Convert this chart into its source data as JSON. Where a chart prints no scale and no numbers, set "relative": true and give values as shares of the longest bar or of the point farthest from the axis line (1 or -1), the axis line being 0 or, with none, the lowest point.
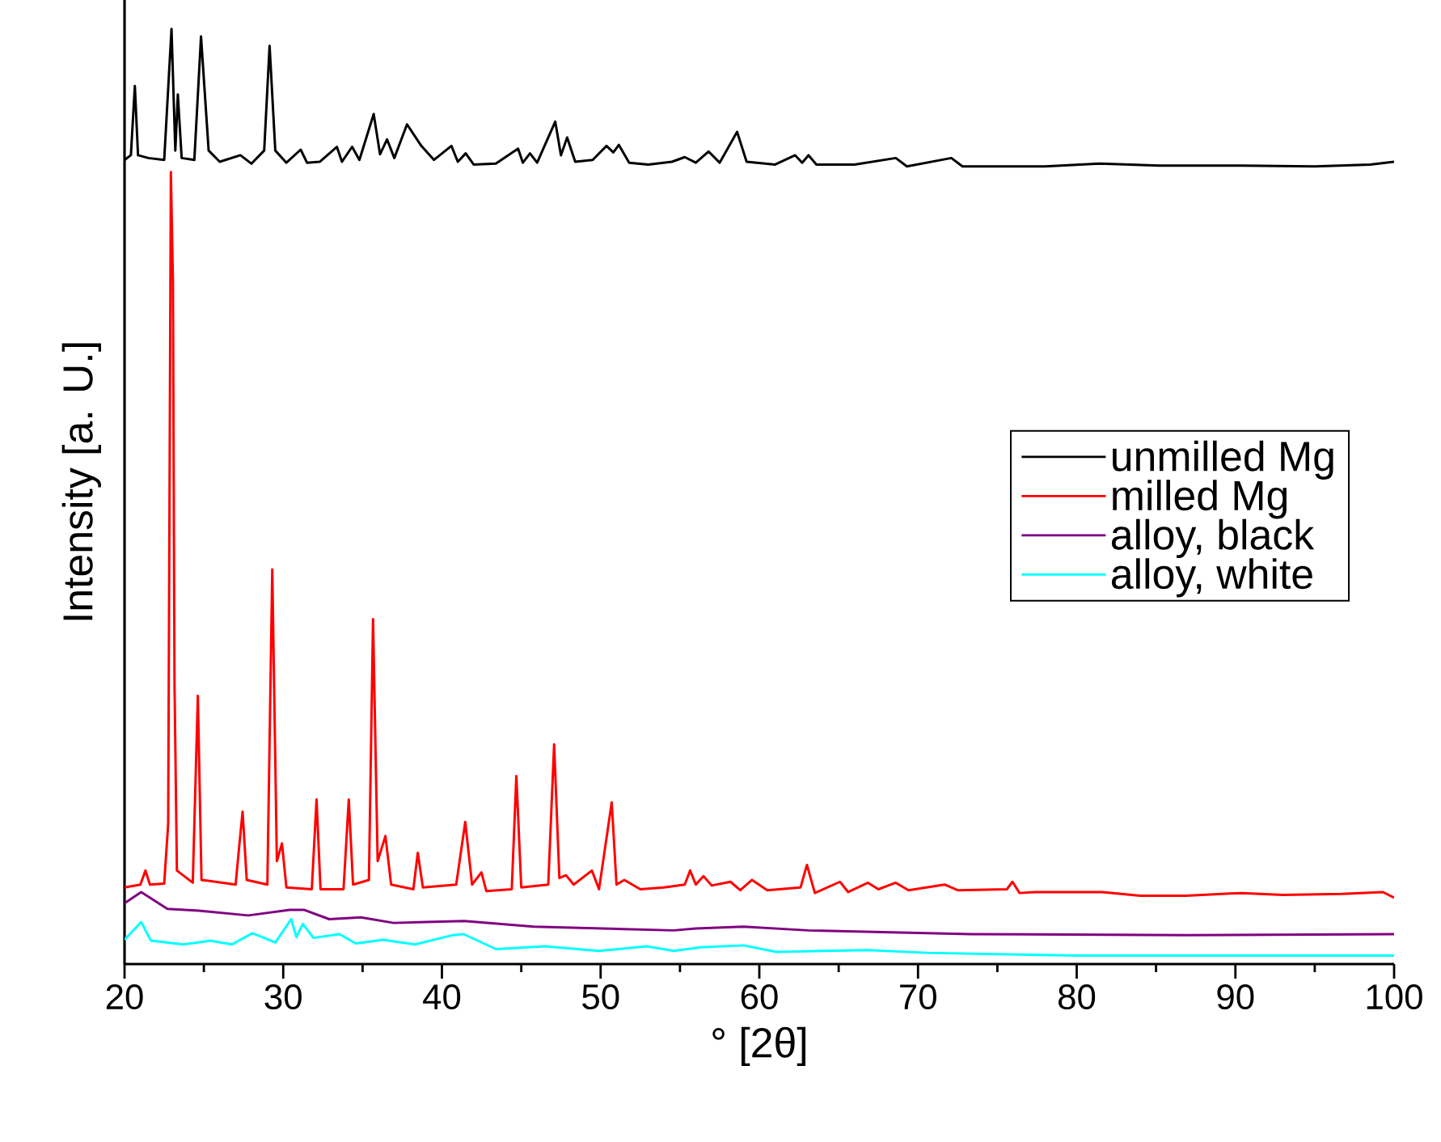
{
  "chart_data": {
    "type": "line",
    "xlabel": "° [2θ]",
    "ylabel": "Intensity [a. U.]",
    "relative": true,
    "xlim": [
      20,
      100
    ],
    "xticks": [
      20,
      30,
      40,
      50,
      60,
      70,
      80,
      90,
      100
    ],
    "legend": "right",
    "marker": "none",
    "line_style": "solid",
    "series": [
      {
        "name": "unmilled Mg",
        "color": "#000000",
        "x": [
          20,
          20.4,
          20.65,
          20.85,
          21.5,
          22.5,
          22.96,
          23.2,
          23.36,
          23.6,
          24.4,
          24.82,
          25.3,
          26.0,
          27.3,
          28.0,
          28.8,
          29.14,
          29.5,
          30.2,
          31.1,
          31.5,
          32.3,
          33.38,
          33.7,
          34.34,
          34.8,
          35.7,
          36.1,
          36.54,
          37.0,
          37.8,
          38.7,
          39.5,
          40.6,
          41.0,
          41.5,
          42.0,
          43.4,
          44.8,
          45.1,
          45.55,
          46.0,
          47.14,
          47.5,
          47.89,
          48.4,
          49.5,
          50.37,
          50.8,
          51.15,
          51.8,
          53,
          54.5,
          55.3,
          56.0,
          56.8,
          57.5,
          58.6,
          59.2,
          61,
          62.26,
          62.7,
          63.1,
          63.6,
          66,
          68.6,
          69.3,
          72.1,
          72.8,
          78,
          81.45,
          85.2,
          90.4,
          95,
          98.5,
          100
        ],
        "values": [
          0.86,
          0.865,
          0.939,
          0.865,
          0.862,
          0.86,
          1.0,
          0.87,
          0.93,
          0.862,
          0.86,
          0.992,
          0.87,
          0.858,
          0.865,
          0.856,
          0.87,
          0.982,
          0.87,
          0.857,
          0.871,
          0.857,
          0.858,
          0.874,
          0.858,
          0.874,
          0.86,
          0.909,
          0.866,
          0.882,
          0.862,
          0.898,
          0.875,
          0.86,
          0.875,
          0.858,
          0.867,
          0.855,
          0.856,
          0.872,
          0.857,
          0.867,
          0.857,
          0.901,
          0.865,
          0.884,
          0.858,
          0.86,
          0.875,
          0.868,
          0.876,
          0.857,
          0.855,
          0.858,
          0.863,
          0.857,
          0.869,
          0.857,
          0.89,
          0.858,
          0.855,
          0.865,
          0.857,
          0.865,
          0.855,
          0.855,
          0.862,
          0.853,
          0.862,
          0.853,
          0.853,
          0.856,
          0.854,
          0.854,
          0.853,
          0.855,
          0.858
        ]
      },
      {
        "name": "milled Mg",
        "color": "#ff0000",
        "x": [
          20,
          21.0,
          21.32,
          21.6,
          22.5,
          22.75,
          22.92,
          23.05,
          23.15,
          23.3,
          24.3,
          24.62,
          24.85,
          27.0,
          27.25,
          27.44,
          27.7,
          29.0,
          29.31,
          29.6,
          29.92,
          30.2,
          31.8,
          32.1,
          32.35,
          33.8,
          34.13,
          34.4,
          35.4,
          35.66,
          35.95,
          36.44,
          36.8,
          38.2,
          38.48,
          38.8,
          40.9,
          41.47,
          41.9,
          42.49,
          42.8,
          44.4,
          44.69,
          45.0,
          46.7,
          47.07,
          47.4,
          47.82,
          48.3,
          49.45,
          49.9,
          50.7,
          51.0,
          51.49,
          52.5,
          54.0,
          55.3,
          55.64,
          56.0,
          56.48,
          57.0,
          58.18,
          58.8,
          59.54,
          60.5,
          62.6,
          63.0,
          63.5,
          65.08,
          65.6,
          66.85,
          67.5,
          68.6,
          69.4,
          71.67,
          72.5,
          75.6,
          75.95,
          76.4,
          77.4,
          81.6,
          84,
          86.9,
          90.4,
          93,
          96.7,
          99.3,
          100
        ],
        "values": [
          0.082,
          0.085,
          0.1,
          0.085,
          0.086,
          0.15,
          0.847,
          0.73,
          0.3,
          0.1,
          0.087,
          0.287,
          0.09,
          0.085,
          0.13,
          0.163,
          0.09,
          0.085,
          0.422,
          0.11,
          0.129,
          0.082,
          0.08,
          0.176,
          0.08,
          0.08,
          0.176,
          0.085,
          0.09,
          0.369,
          0.11,
          0.137,
          0.085,
          0.08,
          0.119,
          0.082,
          0.085,
          0.152,
          0.085,
          0.098,
          0.078,
          0.08,
          0.201,
          0.082,
          0.085,
          0.235,
          0.092,
          0.095,
          0.085,
          0.1,
          0.08,
          0.173,
          0.085,
          0.09,
          0.08,
          0.082,
          0.085,
          0.1,
          0.085,
          0.094,
          0.084,
          0.088,
          0.079,
          0.09,
          0.079,
          0.082,
          0.106,
          0.076,
          0.088,
          0.077,
          0.087,
          0.08,
          0.087,
          0.079,
          0.085,
          0.079,
          0.08,
          0.088,
          0.076,
          0.077,
          0.077,
          0.073,
          0.073,
          0.076,
          0.074,
          0.075,
          0.077,
          0.071
        ]
      },
      {
        "name": "alloy, black",
        "color": "#800080",
        "x": [
          20,
          21.05,
          22.7,
          24.7,
          27.8,
          30.4,
          31.3,
          32.9,
          34.9,
          36.95,
          41.4,
          45.8,
          54.6,
          56.0,
          59.0,
          63.1,
          73.3,
          86.9,
          100
        ],
        "values": [
          0.065,
          0.077,
          0.059,
          0.057,
          0.052,
          0.058,
          0.058,
          0.048,
          0.05,
          0.044,
          0.046,
          0.04,
          0.036,
          0.038,
          0.04,
          0.036,
          0.032,
          0.031,
          0.032
        ]
      },
      {
        "name": "alloy, white",
        "color": "#00ffff",
        "x": [
          20,
          21.05,
          21.66,
          23.7,
          25.4,
          26.76,
          28.05,
          28.8,
          29.5,
          30.5,
          30.83,
          31.24,
          31.9,
          33.55,
          34.57,
          36.27,
          38.3,
          40.7,
          41.37,
          43.4,
          46.5,
          49.86,
          52.9,
          54.6,
          56.3,
          59.0,
          61.07,
          66.85,
          70.6,
          80.1,
          100
        ],
        "values": [
          0.026,
          0.045,
          0.025,
          0.021,
          0.025,
          0.021,
          0.033,
          0.028,
          0.023,
          0.048,
          0.029,
          0.043,
          0.028,
          0.032,
          0.022,
          0.026,
          0.021,
          0.031,
          0.032,
          0.016,
          0.019,
          0.014,
          0.019,
          0.014,
          0.018,
          0.02,
          0.013,
          0.015,
          0.012,
          0.009,
          0.009
        ]
      }
    ]
  }
}
